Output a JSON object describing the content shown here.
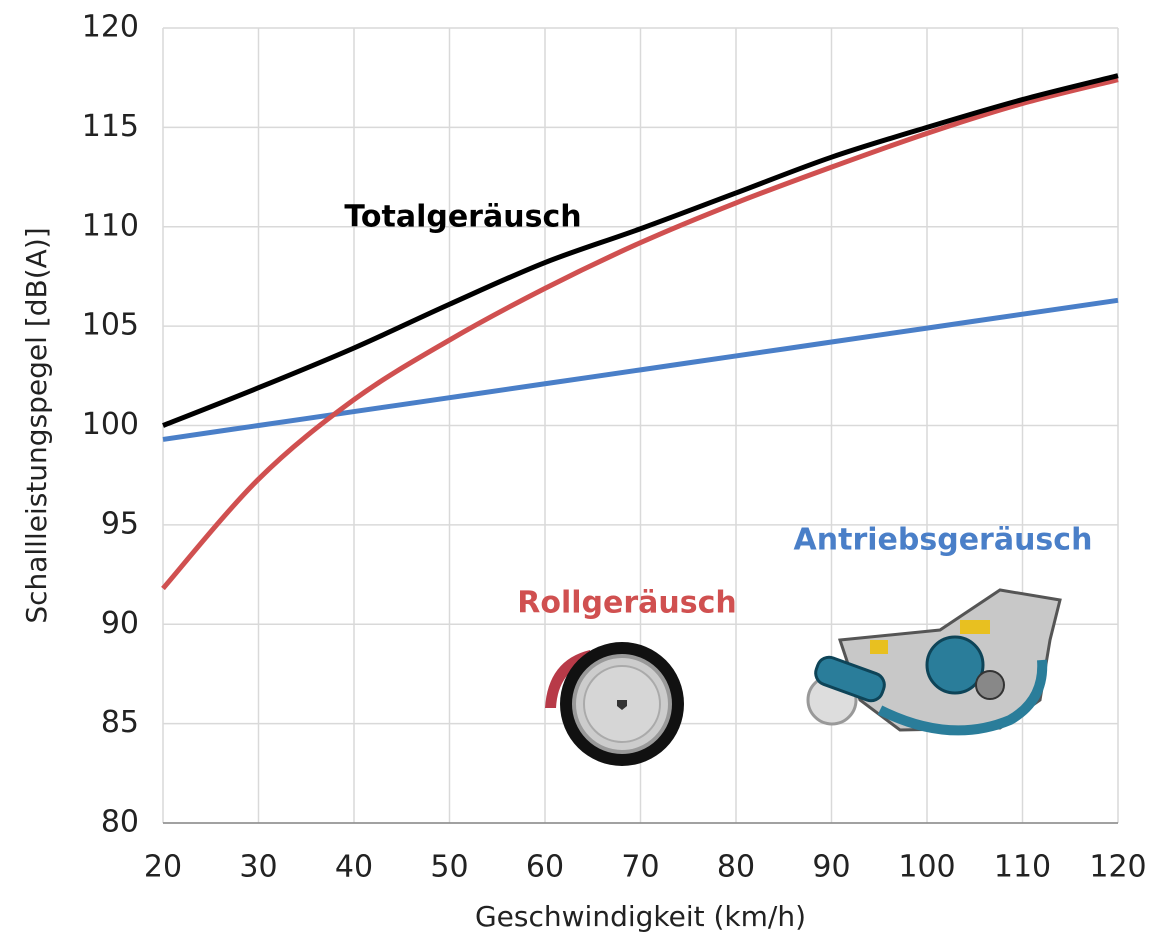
{
  "chart_data": {
    "type": "line",
    "x_label": "Geschwindigkeit (km/h)",
    "y_label": "Schallleistungspegel [dB(A)]",
    "x": [
      20,
      30,
      40,
      50,
      60,
      70,
      80,
      90,
      100,
      110,
      120
    ],
    "series": [
      {
        "name": "Totalgeräusch",
        "color": "#000000",
        "values": [
          100.0,
          101.9,
          103.9,
          106.1,
          108.2,
          109.9,
          111.7,
          113.5,
          115.0,
          116.4,
          117.6
        ]
      },
      {
        "name": "Rollgeräusch",
        "color": "#d05050",
        "values": [
          91.8,
          97.3,
          101.3,
          104.3,
          106.9,
          109.2,
          111.2,
          113.0,
          114.7,
          116.2,
          117.4
        ]
      },
      {
        "name": "Antriebsgeräusch",
        "color": "#4a7fc8",
        "values": [
          99.3,
          100.0,
          100.7,
          101.4,
          102.1,
          102.8,
          103.5,
          104.2,
          104.9,
          105.6,
          106.3
        ]
      }
    ],
    "xlim": [
      20,
      120
    ],
    "xticks": [
      20,
      30,
      40,
      50,
      60,
      70,
      80,
      90,
      100,
      110,
      120
    ],
    "ylim": [
      80,
      120
    ],
    "yticks": [
      80,
      85,
      90,
      95,
      100,
      105,
      110,
      115,
      120
    ],
    "grid": true
  }
}
